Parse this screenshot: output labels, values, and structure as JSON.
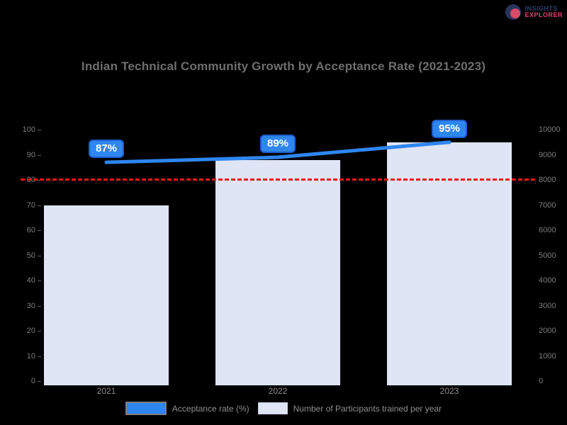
{
  "page": {
    "background": "#000000"
  },
  "brand": {
    "icon": "pie-circle-logo",
    "line1": "INSIGHTS",
    "line2": "EXPLORER",
    "line1_color": "#2e3f6e",
    "line2_color": "#e0446e"
  },
  "chart_data": {
    "type": "bar",
    "title": "Indian Technical Community Growth by Acceptance Rate (2021-2023)",
    "categories": [
      "2021",
      "2022",
      "2023"
    ],
    "series": [
      {
        "name": "Acceptance rate (%)",
        "type": "line",
        "axis": "left",
        "values": [
          87,
          89,
          95
        ],
        "point_labels": [
          "87%",
          "89%",
          "95%"
        ],
        "color": "#2e86f0",
        "label_bg": "#2e86f0",
        "label_border": "#1d5ecc"
      },
      {
        "name": "Number of Participants trained per year",
        "type": "bar",
        "axis": "right",
        "values": [
          7000,
          8800,
          9500
        ],
        "color": "#dfe5f5"
      }
    ],
    "left_axis": {
      "min": 0,
      "max": 100,
      "step": 10,
      "labels": [
        "100",
        "90",
        "80",
        "70",
        "60",
        "50",
        "40",
        "30",
        "20",
        "10",
        "0"
      ]
    },
    "right_axis": {
      "min": 0,
      "max": 10000,
      "step": 1000,
      "labels": [
        "10000",
        "9000",
        "8000",
        "7000",
        "6000",
        "5000",
        "4000",
        "3000",
        "2000",
        "1000",
        "0"
      ]
    },
    "target_line": {
      "value": 80,
      "color": "#ea1717",
      "style": "dashed"
    },
    "legend_position": "bottom",
    "grid": false
  },
  "legend": {
    "items": [
      {
        "swatch_color": "#2e86f0",
        "shape": "line-swatch"
      },
      {
        "swatch_color": "#dfe5f5",
        "shape": "bar-swatch"
      }
    ]
  }
}
